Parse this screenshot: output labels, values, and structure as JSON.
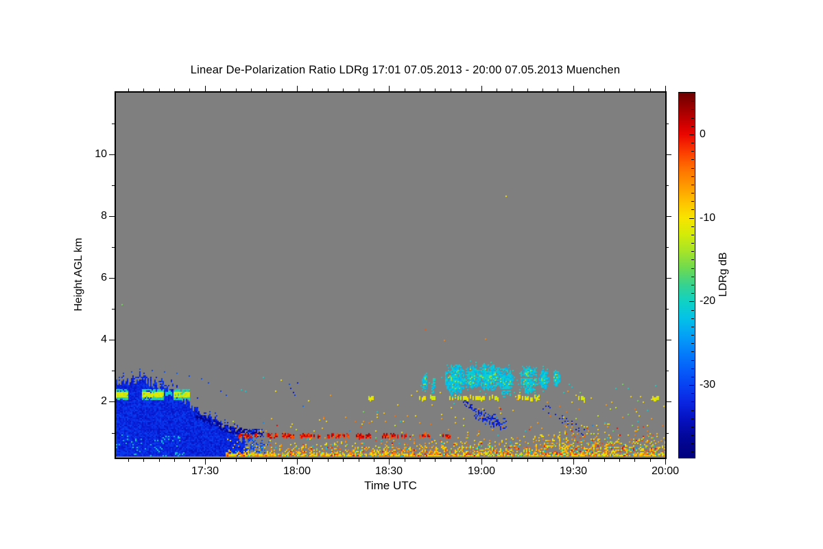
{
  "chart_data": {
    "type": "heatmap",
    "title": "Linear De-Polarization Ratio LDRg   17:01 07.05.2013 - 20:00 07.05.2013 Muenchen",
    "xlabel": "Time UTC",
    "ylabel": "Height AGL km",
    "station": "Muenchen",
    "time_start": "17:01",
    "time_end": "20:00",
    "x_total_minutes": 179,
    "x_ticks_major": [
      "17:30",
      "18:00",
      "18:30",
      "19:00",
      "19:30",
      "20:00"
    ],
    "x_tick_minutes": [
      29,
      59,
      89,
      119,
      149,
      179
    ],
    "x_minor_step_min": 5,
    "ylim": [
      0.19,
      12.0
    ],
    "y_ticks_major": [
      2,
      4,
      6,
      8,
      10
    ],
    "y_ticks_minor": [
      1,
      3,
      5,
      7,
      9,
      11
    ],
    "grid": false,
    "no_data_color": "#7f7f7f",
    "colorbar": {
      "label": "LDRg dB",
      "vmax": 5,
      "vmin": -38.7,
      "ticks": [
        0,
        -10,
        -20,
        -30
      ],
      "tick_labels": [
        "0",
        "-10",
        "-20",
        "-30"
      ],
      "minor_step": 1
    },
    "colormap": [
      [
        5,
        "#6b0000"
      ],
      [
        3,
        "#a00000"
      ],
      [
        1,
        "#d40000"
      ],
      [
        0,
        "#ea0600"
      ],
      [
        -2,
        "#fb3a00"
      ],
      [
        -4,
        "#ff6e00"
      ],
      [
        -6,
        "#ff9600"
      ],
      [
        -8,
        "#ffc000"
      ],
      [
        -10,
        "#f8e400"
      ],
      [
        -12,
        "#d2ec08"
      ],
      [
        -14,
        "#a6e428"
      ],
      [
        -16,
        "#6eda50"
      ],
      [
        -18,
        "#36d290"
      ],
      [
        -20,
        "#10d2c4"
      ],
      [
        -22,
        "#04c2e6"
      ],
      [
        -24,
        "#04a2f6"
      ],
      [
        -26,
        "#0480fa"
      ],
      [
        -28,
        "#0560fa"
      ],
      [
        -30,
        "#0742f2"
      ],
      [
        -32,
        "#0a26e2"
      ],
      [
        -34,
        "#0512c2"
      ],
      [
        -36,
        "#03089c"
      ],
      [
        -38,
        "#010284"
      ],
      [
        -38.7,
        "#000080"
      ]
    ],
    "features": [
      {
        "kind": "rain_blob",
        "t0": 0,
        "t1": 43,
        "base_h": 0.19,
        "top_profile": [
          [
            0,
            2.62
          ],
          [
            5,
            2.7
          ],
          [
            9,
            2.72
          ],
          [
            12,
            2.6
          ],
          [
            15,
            2.45
          ],
          [
            18,
            2.3
          ],
          [
            21,
            2.12
          ],
          [
            24,
            1.9
          ],
          [
            27,
            1.68
          ],
          [
            30,
            1.5
          ],
          [
            33,
            1.33
          ],
          [
            36,
            1.18
          ],
          [
            39,
            1.0
          ],
          [
            41,
            0.8
          ],
          [
            43,
            0.55
          ]
        ],
        "value": -32,
        "noise_db": 2,
        "spike_km": 0.15,
        "spray_km": 0.3,
        "spray_prob": 0.3,
        "cyan_below": {
          "t1": 22,
          "h_max": 0.95,
          "prob": 0.06,
          "value": -21
        },
        "dark_cap": {
          "t0": 26,
          "t1": 48,
          "depth_km": 0.22,
          "prob": 0.55,
          "value": -36.5,
          "h_profile": [
            [
              26,
              1.72
            ],
            [
              30,
              1.52
            ],
            [
              34,
              1.35
            ],
            [
              38,
              1.2
            ],
            [
              42,
              1.15
            ],
            [
              48,
              1.1
            ]
          ]
        },
        "tail": {
          "t0": 43,
          "t1": 50,
          "h_max": 1.1,
          "prob": 0.4,
          "value": -30
        }
      },
      {
        "kind": "bright_line",
        "h": 2.25,
        "segments": [
          [
            0,
            4
          ],
          [
            8.5,
            15.5
          ],
          [
            19,
            24
          ]
        ],
        "halo_km": 0.16,
        "core_km": 0.07,
        "core_value": -12,
        "halo_value": -19,
        "core_prob": 0.85,
        "halo_prob": 0.8
      },
      {
        "kind": "dashed_line",
        "h": 2.28,
        "h_jitter": 0.03,
        "thick_km": 0.1,
        "segments": [
          [
            16,
            18.5
          ]
        ],
        "values": [
          -20,
          -21
        ],
        "fill_prob": 0.8
      },
      {
        "kind": "surface_speckle",
        "t0": 36,
        "t1": 179,
        "base_h": 0.19,
        "top_profile": [
          [
            36,
            0.7
          ],
          [
            50,
            0.75
          ],
          [
            70,
            0.85
          ],
          [
            90,
            0.95
          ],
          [
            110,
            1.05
          ],
          [
            130,
            1.15
          ],
          [
            150,
            1.45
          ],
          [
            160,
            1.5
          ],
          [
            170,
            1.4
          ],
          [
            179,
            1.35
          ]
        ],
        "density": 0.8,
        "falloff": 2.0,
        "palette": [
          [
            -9.5,
            0.27
          ],
          [
            -8,
            0.15
          ],
          [
            -6,
            0.18
          ],
          [
            -4,
            0.1
          ],
          [
            -2,
            0.05
          ],
          [
            0,
            0.04
          ],
          [
            -12.5,
            0.1
          ],
          [
            -16,
            0.04
          ],
          [
            -21,
            0.06
          ],
          [
            -25,
            0.01
          ]
        ],
        "bottom_km": 0.32,
        "bottom_prob": 0.9,
        "sparse_above_prob": 0.015,
        "sparse_above_km": 0.75
      },
      {
        "kind": "dashed_line",
        "h": 0.9,
        "h_jitter": 0.04,
        "thick_km": 0.1,
        "segments": [
          [
            40,
            47
          ],
          [
            49,
            58
          ],
          [
            60,
            67
          ],
          [
            69,
            76
          ],
          [
            78,
            83
          ],
          [
            87,
            95
          ],
          [
            98,
            103
          ],
          [
            106,
            109
          ]
        ],
        "values": [
          -0.5,
          2.5,
          -3
        ],
        "fill_prob": 0.75
      },
      {
        "kind": "dashed_line",
        "h": 2.12,
        "h_jitter": 0.03,
        "thick_km": 0.09,
        "segments": [
          [
            82,
            84
          ],
          [
            99,
            101
          ],
          [
            102.5,
            104.5
          ],
          [
            109,
            115
          ],
          [
            115.5,
            120
          ],
          [
            122,
            125
          ],
          [
            131,
            134.5
          ],
          [
            135,
            138
          ],
          [
            151,
            153
          ],
          [
            175,
            177
          ]
        ],
        "values": [
          -11,
          -12.5,
          -9.5
        ],
        "fill_prob": 0.85
      },
      {
        "kind": "cloud_patches",
        "value": -21.5,
        "noise_db": 2,
        "core_value": -14.5,
        "core_prob": 0.15,
        "halo_prob": 0.05,
        "patches": [
          [
            110.5,
            2.72,
            3.5,
            0.5
          ],
          [
            116,
            2.82,
            2.5,
            0.4
          ],
          [
            121.5,
            2.8,
            4,
            0.45
          ],
          [
            127,
            2.68,
            2.5,
            0.45
          ],
          [
            134.5,
            2.72,
            2.8,
            0.45
          ],
          [
            139.5,
            2.73,
            1.8,
            0.33
          ],
          [
            143.5,
            2.75,
            1.2,
            0.26
          ],
          [
            100.7,
            2.6,
            0.8,
            0.28
          ],
          [
            103.5,
            2.55,
            0.7,
            0.25
          ]
        ]
      },
      {
        "kind": "streak",
        "pts": [
          [
            113,
            2.03
          ],
          [
            116,
            1.8
          ],
          [
            119,
            1.6
          ],
          [
            122,
            1.45
          ],
          [
            125,
            1.32
          ]
        ],
        "width_km": 0.09,
        "density": 0.5,
        "value": -33,
        "noise_db": 2
      },
      {
        "kind": "streak",
        "pts": [
          [
            117,
            1.62
          ],
          [
            120,
            1.5
          ],
          [
            123,
            1.38
          ],
          [
            125.5,
            1.3
          ],
          [
            127,
            1.28
          ]
        ],
        "width_km": 0.16,
        "density": 0.75,
        "value": -32,
        "noise_db": 2.5
      },
      {
        "kind": "streak",
        "pts": [
          [
            141,
            1.72
          ],
          [
            144,
            1.55
          ],
          [
            147,
            1.38
          ],
          [
            150,
            1.18
          ],
          [
            152.5,
            1.0
          ]
        ],
        "width_km": 0.1,
        "density": 0.3,
        "value": -33,
        "noise_db": 2
      },
      {
        "kind": "specks",
        "size": 2,
        "items": [
          [
            127,
            8.63,
            -10
          ],
          [
            107,
            4.0,
            -5
          ],
          [
            120.5,
            4.02,
            -5
          ],
          [
            101,
            4.35,
            -3
          ],
          [
            2,
            5.15,
            -16
          ],
          [
            48,
            2.77,
            -20
          ],
          [
            41,
            2.4,
            -20
          ],
          [
            42.3,
            2.33,
            -21
          ],
          [
            54,
            2.72,
            -10
          ],
          [
            52,
            2.35,
            -10
          ],
          [
            57,
            2.45,
            -33
          ],
          [
            57.8,
            2.32,
            -34
          ],
          [
            58.4,
            2.2,
            -31
          ],
          [
            56.6,
            2.56,
            -29
          ],
          [
            59,
            2.6,
            -33
          ],
          [
            61,
            1.85,
            -27
          ],
          [
            63,
            2.05,
            -10
          ],
          [
            70,
            2.2,
            -6
          ],
          [
            75,
            1.5,
            -6
          ],
          [
            80,
            1.2,
            -3
          ],
          [
            85,
            1.6,
            -8
          ],
          [
            88,
            1.35,
            -6
          ],
          [
            92,
            1.9,
            -9
          ],
          [
            95,
            1.55,
            -6
          ],
          [
            96.5,
            2.2,
            -9
          ],
          [
            98,
            2.35,
            -9
          ],
          [
            99.5,
            2.52,
            -20
          ],
          [
            100.8,
            2.44,
            -21
          ],
          [
            102,
            2.62,
            -20
          ],
          [
            104,
            2.5,
            -20
          ],
          [
            105.5,
            2.3,
            -9
          ],
          [
            110,
            1.95,
            -20
          ],
          [
            112,
            2.2,
            -20
          ],
          [
            126,
            2.25,
            -20
          ],
          [
            130,
            2.32,
            -20
          ],
          [
            131.5,
            2.28,
            -14
          ],
          [
            137,
            2.2,
            -20
          ],
          [
            146,
            2.32,
            -20
          ],
          [
            147.5,
            2.58,
            -20
          ],
          [
            148.5,
            2.48,
            -21
          ],
          [
            150,
            2.2,
            -9
          ],
          [
            155,
            2.12,
            -9
          ],
          [
            160,
            1.92,
            -6
          ],
          [
            163,
            2.45,
            -20
          ],
          [
            165,
            2.55,
            -16
          ],
          [
            167,
            2.42,
            -20
          ],
          [
            168,
            2.16,
            -9
          ],
          [
            171,
            2.15,
            -9
          ],
          [
            176,
            2.5,
            -20
          ],
          [
            44,
            0.5,
            -30
          ],
          [
            45,
            0.62,
            -29
          ],
          [
            46,
            0.38,
            -31
          ],
          [
            47,
            0.52,
            -28
          ],
          [
            44.5,
            0.78,
            -26
          ],
          [
            43.5,
            0.92,
            -30
          ],
          [
            48.5,
            0.45,
            -27
          ],
          [
            50,
            0.7,
            -28
          ],
          [
            139,
            1.78,
            -32
          ],
          [
            140,
            1.85,
            -33
          ],
          [
            36,
            2.2,
            -30
          ],
          [
            34,
            2.35,
            -31
          ],
          [
            30,
            2.6,
            -30
          ],
          [
            28,
            2.75,
            -29
          ],
          [
            24,
            2.85,
            -30
          ],
          [
            20,
            2.9,
            -28
          ],
          [
            16,
            2.95,
            -29
          ],
          [
            12,
            3.0,
            -30
          ],
          [
            8,
            3.05,
            -29
          ],
          [
            5,
            2.95,
            -30
          ]
        ]
      }
    ]
  }
}
